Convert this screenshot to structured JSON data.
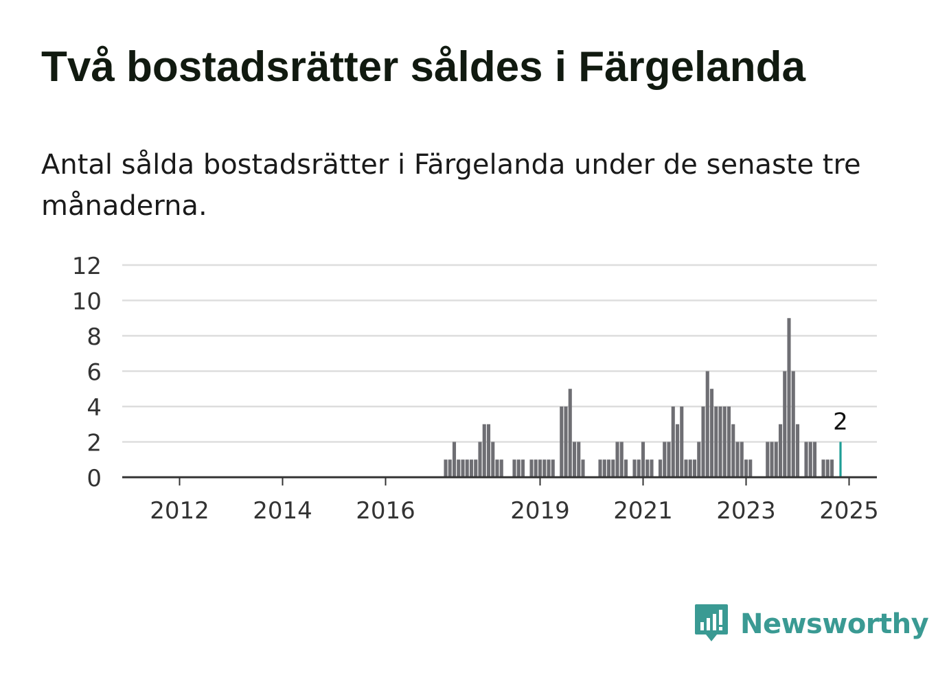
{
  "title": "Två bostadsrätter såldes i Färgelanda",
  "subtitle": "Antal sålda bostadsrätter i Färgelanda under de senaste tre månaderna.",
  "brand": {
    "name": "Newsworthy",
    "color": "#3a9a93"
  },
  "chart_data": {
    "type": "bar",
    "title": "Två bostadsrätter såldes i Färgelanda",
    "subtitle": "Antal sålda bostadsrätter i Färgelanda under de senaste tre månaderna.",
    "xlabel": "",
    "ylabel": "",
    "ylim": [
      0,
      12
    ],
    "yticks": [
      0,
      2,
      4,
      6,
      8,
      10,
      12
    ],
    "xticks": [
      "2012",
      "2014",
      "2016",
      "2019",
      "2021",
      "2023",
      "2025"
    ],
    "grid": true,
    "colors": {
      "bar": "#6e6e73",
      "highlight": "#1f9e96",
      "grid": "#dddddd",
      "axis": "#333333"
    },
    "highlight_label": "2",
    "series": [
      {
        "values": [
          0,
          0,
          0,
          0,
          0,
          0,
          0,
          0,
          0,
          0,
          0,
          0,
          0,
          0,
          0,
          0,
          0,
          0,
          0,
          0,
          0,
          0,
          0,
          0,
          0,
          0,
          0,
          0,
          0,
          0,
          0,
          0,
          0,
          0,
          0,
          0,
          0,
          0,
          0,
          0,
          0,
          0,
          0,
          0,
          0,
          0,
          0,
          0,
          0,
          0,
          0,
          0,
          0,
          0,
          0,
          0,
          0,
          0,
          0,
          0,
          0,
          0,
          0,
          0,
          0,
          0,
          0,
          0,
          0,
          0,
          0,
          0,
          0,
          0,
          1,
          1,
          2,
          1,
          1,
          1,
          1,
          1,
          2,
          3,
          3,
          2,
          1,
          1,
          0,
          0,
          1,
          1,
          1,
          0,
          1,
          1,
          1,
          1,
          1,
          1,
          0,
          4,
          4,
          5,
          2,
          2,
          1,
          0,
          0,
          0,
          1,
          1,
          1,
          1,
          2,
          2,
          1,
          0,
          1,
          1,
          2,
          1,
          1,
          0,
          1,
          2,
          2,
          4,
          3,
          4,
          1,
          1,
          1,
          2,
          4,
          6,
          5,
          4,
          4,
          4,
          4,
          3,
          2,
          2,
          1,
          1,
          0,
          0,
          0,
          2,
          2,
          2,
          3,
          6,
          9,
          6,
          3,
          0,
          2,
          2,
          2,
          0,
          1,
          1,
          1,
          0,
          2
        ]
      }
    ]
  }
}
